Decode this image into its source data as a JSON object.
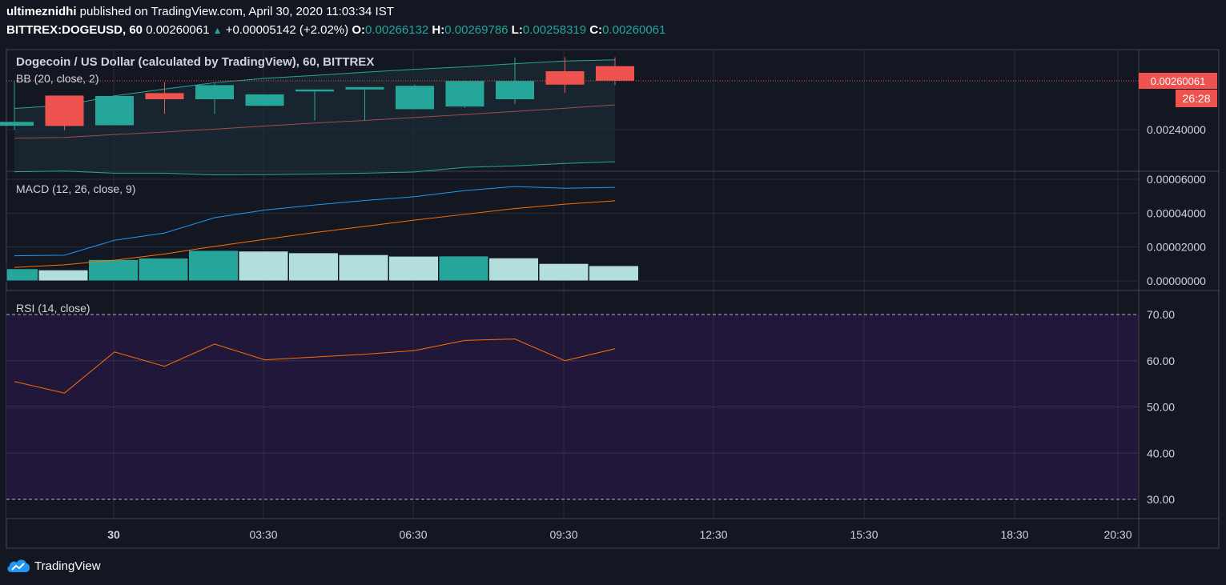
{
  "header": {
    "author": "ultimeznidhi",
    "published_text": " published on TradingView.com, April 30, 2020 11:03:34 IST",
    "symbol": "BITTREX:DOGEUSD, 60",
    "last": "0.00260061",
    "change": "+0.00005142 (+2.02%)",
    "o_label": "O:",
    "o": "0.00266132",
    "h_label": "H:",
    "h": "0.00269786",
    "l_label": "L:",
    "l": "0.00258319",
    "c_label": "C:",
    "c": "0.00260061"
  },
  "brand": {
    "name": "TradingView",
    "icon": "tradingview-cloud-icon"
  },
  "colors": {
    "up": "#26a69a",
    "down": "#ef5350",
    "bb_upper": "#26a69a",
    "bb_lower": "#26a69a",
    "bb_basis": "#a14b4b",
    "macd": "#2196f3",
    "signal": "#ff6d00",
    "hist_strong": "#26a69a",
    "hist_weak": "#b2dfdb",
    "rsi": "#ff6d00",
    "rsi_band": "#21173b"
  },
  "chart_data": [
    {
      "type": "candlestick",
      "title": "Dogecoin / US Dollar (calculated by TradingView), 60, BITTREX",
      "indicator_label": "BB (20, close, 2)",
      "candles": [
        {
          "o": 0.002416,
          "h": 0.0026,
          "l": 0.0024,
          "c": 0.002432
        },
        {
          "o": 0.00254,
          "h": 0.00254,
          "l": 0.002398,
          "c": 0.002415
        },
        {
          "o": 0.002418,
          "h": 0.00254,
          "l": 0.002418,
          "c": 0.002538
        },
        {
          "o": 0.00255,
          "h": 0.002595,
          "l": 0.002465,
          "c": 0.002525
        },
        {
          "o": 0.002525,
          "h": 0.00259,
          "l": 0.002465,
          "c": 0.002583
        },
        {
          "o": 0.002498,
          "h": 0.002545,
          "l": 0.002498,
          "c": 0.002545
        },
        {
          "o": 0.002557,
          "h": 0.002565,
          "l": 0.002437,
          "c": 0.002565
        },
        {
          "o": 0.002565,
          "h": 0.002575,
          "l": 0.002437,
          "c": 0.002575
        },
        {
          "o": 0.002484,
          "h": 0.002585,
          "l": 0.002484,
          "c": 0.00258
        },
        {
          "o": 0.002495,
          "h": 0.0026,
          "l": 0.00249,
          "c": 0.0026
        },
        {
          "o": 0.002525,
          "h": 0.002696,
          "l": 0.002505,
          "c": 0.0026
        },
        {
          "o": 0.00264,
          "h": 0.002698,
          "l": 0.002552,
          "c": 0.002585
        },
        {
          "o": 0.002661,
          "h": 0.002698,
          "l": 0.002583,
          "c": 0.002601
        }
      ],
      "bb_upper": [
        0.002487,
        0.0025,
        0.002539,
        0.002567,
        0.002593,
        0.002611,
        0.002623,
        0.002636,
        0.002648,
        0.002658,
        0.002671,
        0.002682,
        0.002687
      ],
      "bb_basis": [
        0.002365,
        0.002368,
        0.00238,
        0.00239,
        0.002402,
        0.002415,
        0.002427,
        0.002438,
        0.00245,
        0.002462,
        0.002475,
        0.002488,
        0.002502
      ],
      "bb_lower": [
        0.002227,
        0.00223,
        0.002221,
        0.002221,
        0.002214,
        0.002215,
        0.002218,
        0.002221,
        0.002226,
        0.002245,
        0.002251,
        0.002261,
        0.002268
      ],
      "last_price_label": "0.00260061",
      "countdown": "26:28",
      "y_ticks": [
        "0.00240000"
      ]
    },
    {
      "type": "line",
      "title": "MACD (12, 26, close, 9)",
      "macd": [
        1.48e-05,
        1.52e-05,
        2.4e-05,
        2.83e-05,
        3.73e-05,
        4.18e-05,
        4.48e-05,
        4.75e-05,
        4.97e-05,
        5.33e-05,
        5.57e-05,
        5.47e-05,
        5.52e-05
      ],
      "signal": [
        8e-06,
        9.5e-06,
        1.22e-05,
        1.59e-05,
        2.04e-05,
        2.45e-05,
        2.85e-05,
        3.22e-05,
        3.59e-05,
        3.93e-05,
        4.27e-05,
        4.53e-05,
        4.73e-05
      ],
      "histogram": [
        7.2e-06,
        6.5e-06,
        1.26e-05,
        1.35e-05,
        1.8e-05,
        1.76e-05,
        1.66e-05,
        1.55e-05,
        1.46e-05,
        1.47e-05,
        1.36e-05,
        1.03e-05,
        9e-06
      ],
      "hist_strong": [
        true,
        false,
        true,
        true,
        true,
        false,
        false,
        false,
        false,
        true,
        false,
        false,
        false
      ],
      "y_ticks": [
        "0.00006000",
        "0.00004000",
        "0.00002000",
        "0.00000000"
      ]
    },
    {
      "type": "line",
      "title": "RSI (14, close)",
      "rsi": [
        55.5,
        53.0,
        61.9,
        58.8,
        63.6,
        60.2,
        60.8,
        61.4,
        62.2,
        64.4,
        64.7,
        60.0,
        62.6
      ],
      "bands": [
        30,
        70
      ],
      "y_ticks": [
        "70.00",
        "60.00",
        "50.00",
        "40.00",
        "30.00"
      ]
    }
  ],
  "x_axis": [
    "30",
    "03:30",
    "06:30",
    "09:30",
    "12:30",
    "15:30",
    "18:30",
    "20:30"
  ]
}
